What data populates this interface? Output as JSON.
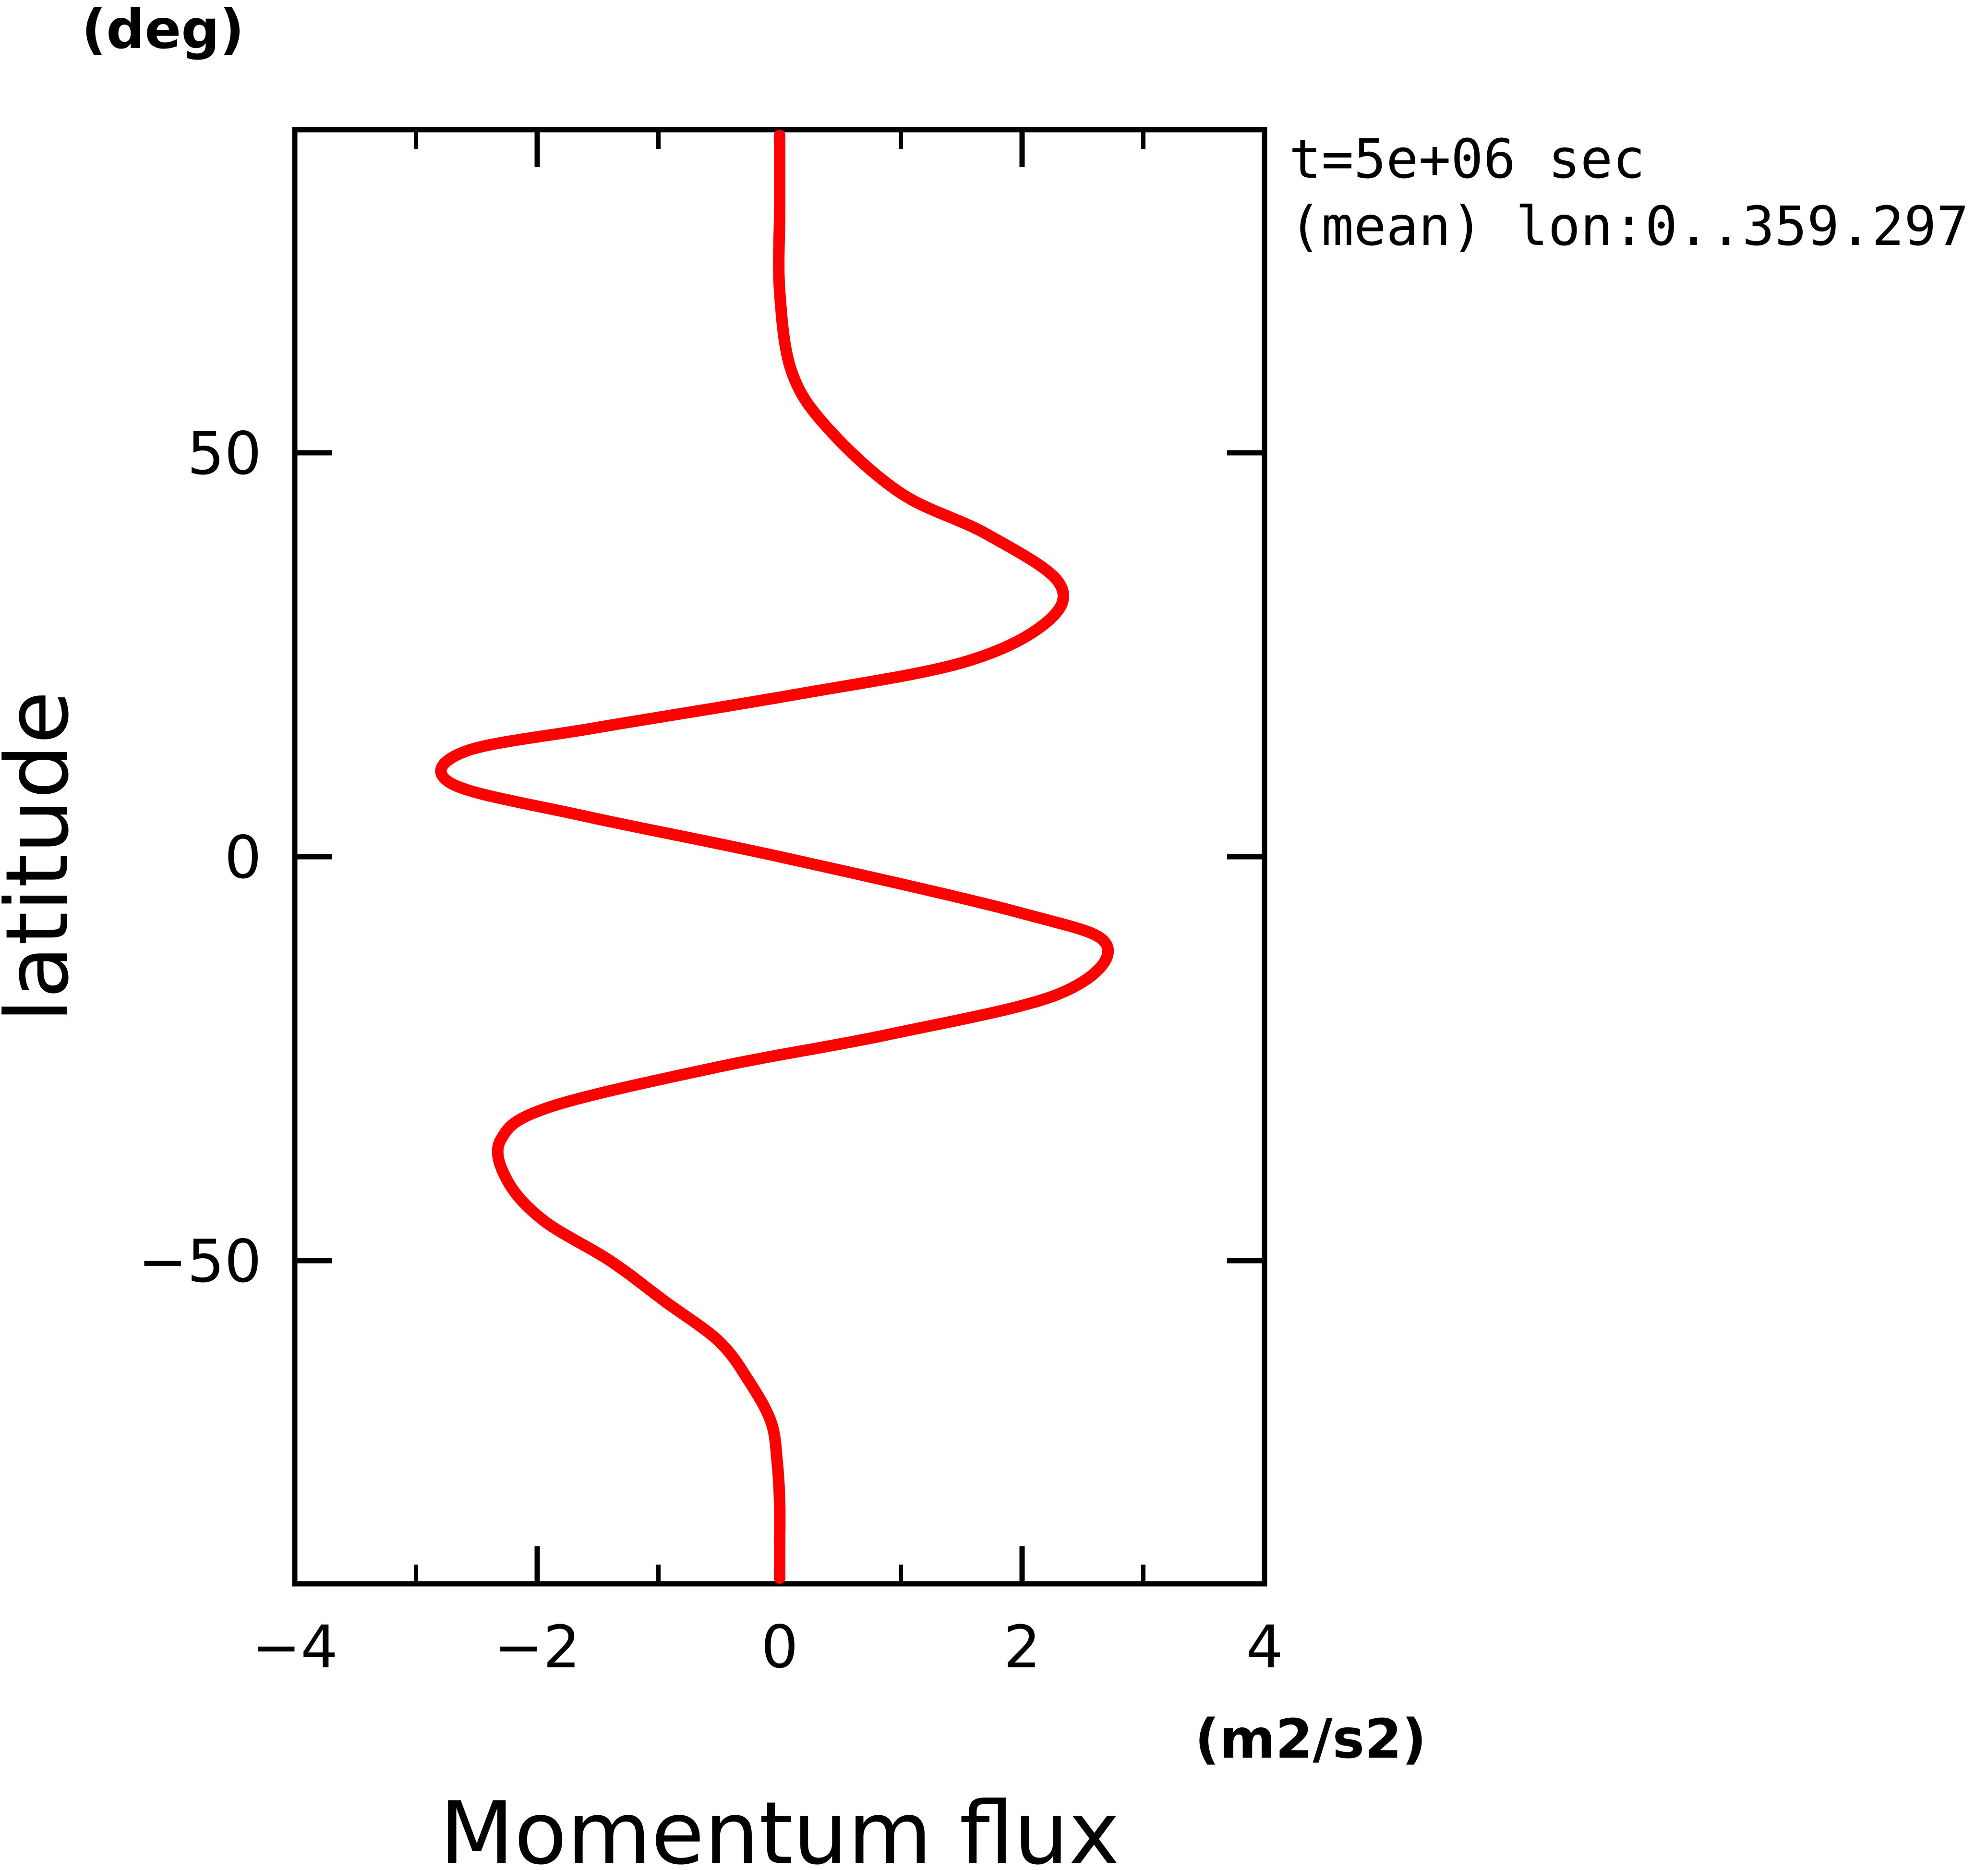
{
  "chart_data": {
    "type": "line",
    "title": "",
    "xlabel": "Momentum flux",
    "ylabel": "latitude",
    "x_unit": "(m2/s2)",
    "y_unit": "(deg)",
    "xlim": [
      -4,
      4
    ],
    "ylim": [
      -90,
      90
    ],
    "x_major_ticks": [
      -4,
      -2,
      0,
      2,
      4
    ],
    "x_tick_labels": [
      "−4",
      "−2",
      "0",
      "2",
      "4"
    ],
    "x_minor_ticks": [
      -3,
      -1,
      1,
      3
    ],
    "y_major_ticks": [
      -50,
      0,
      50
    ],
    "y_tick_labels": [
      "−50",
      "0",
      "50"
    ],
    "grid": false,
    "annotations": [
      "t=5e+06 sec",
      "(mean) lon:0..359.297"
    ],
    "line_color": "#ff0000",
    "series": [
      {
        "points": [
          [
            0.0,
            -89.3
          ],
          [
            0.0,
            -85
          ],
          [
            0.0,
            -80
          ],
          [
            -0.02,
            -75
          ],
          [
            -0.07,
            -70
          ],
          [
            -0.25,
            -65
          ],
          [
            -0.5,
            -60
          ],
          [
            -0.95,
            -55
          ],
          [
            -1.4,
            -50
          ],
          [
            -1.95,
            -45
          ],
          [
            -2.25,
            -40
          ],
          [
            -2.3,
            -35
          ],
          [
            -1.9,
            -31
          ],
          [
            -0.5,
            -26
          ],
          [
            0.9,
            -22
          ],
          [
            2.3,
            -17
          ],
          [
            2.7,
            -11
          ],
          [
            2.0,
            -7
          ],
          [
            0.0,
            0
          ],
          [
            -1.6,
            5
          ],
          [
            -2.7,
            9
          ],
          [
            -2.6,
            13
          ],
          [
            -1.5,
            16
          ],
          [
            0.1,
            20
          ],
          [
            1.5,
            24
          ],
          [
            2.2,
            29
          ],
          [
            2.3,
            34
          ],
          [
            1.7,
            40
          ],
          [
            1.0,
            45
          ],
          [
            0.4,
            53
          ],
          [
            0.1,
            60
          ],
          [
            0.0,
            70
          ],
          [
            0.0,
            80
          ],
          [
            0.0,
            89.3
          ]
        ]
      }
    ]
  }
}
